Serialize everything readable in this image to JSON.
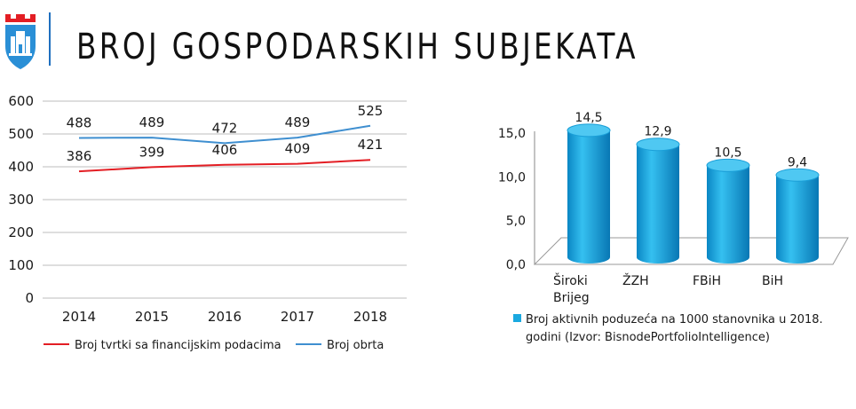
{
  "slide": {
    "title": "BROJ GOSPODARSKIH SUBJEKATA"
  },
  "colors": {
    "accent": "#1f6fbf",
    "series_red": "#e31e24",
    "series_blue": "#3f8fd0",
    "bar_blue": "#1aa9e0"
  },
  "chart_data": [
    {
      "type": "line",
      "title": "",
      "xlabel": "",
      "ylabel": "",
      "categories": [
        "2014",
        "2015",
        "2016",
        "2017",
        "2018"
      ],
      "ylim": [
        0,
        600
      ],
      "yticks": [
        "0",
        "100",
        "200",
        "300",
        "400",
        "500",
        "600"
      ],
      "grid": true,
      "legend_position": "bottom",
      "series": [
        {
          "name": "Broj tvrtki sa financijskim podacima",
          "color": "#e31e24",
          "values": [
            386,
            399,
            406,
            409,
            421
          ],
          "labels": [
            "386",
            "399",
            "406",
            "409",
            "421"
          ]
        },
        {
          "name": "Broj obrta",
          "color": "#3f8fd0",
          "values": [
            488,
            489,
            472,
            489,
            525
          ],
          "labels": [
            "488",
            "489",
            "472",
            "489",
            "525"
          ]
        }
      ]
    },
    {
      "type": "bar",
      "style": "3d-cylinder",
      "title": "",
      "xlabel": "",
      "ylabel": "",
      "categories": [
        [
          "Široki",
          "Brijeg"
        ],
        [
          "ŽZH"
        ],
        [
          "FBiH"
        ],
        [
          "BiH"
        ]
      ],
      "ylim": [
        0,
        15
      ],
      "yticks": [
        "0,0",
        "5,0",
        "10,0",
        "15,0"
      ],
      "grid": false,
      "legend_position": "bottom",
      "series": [
        {
          "name": "Broj aktivnih poduzeća na 1000 stanovnika u 2018. godini (Izvor: BisnodePortfolioIntelligence)",
          "legend_lines": [
            "Broj aktivnih poduzeća na 1000 stanovnika u 2018.",
            "godini (Izvor: BisnodePortfolioIntelligence)"
          ],
          "color": "#1aa9e0",
          "values": [
            14.5,
            12.9,
            10.5,
            9.4
          ],
          "labels": [
            "14,5",
            "12,9",
            "10,5",
            "9,4"
          ]
        }
      ]
    }
  ]
}
